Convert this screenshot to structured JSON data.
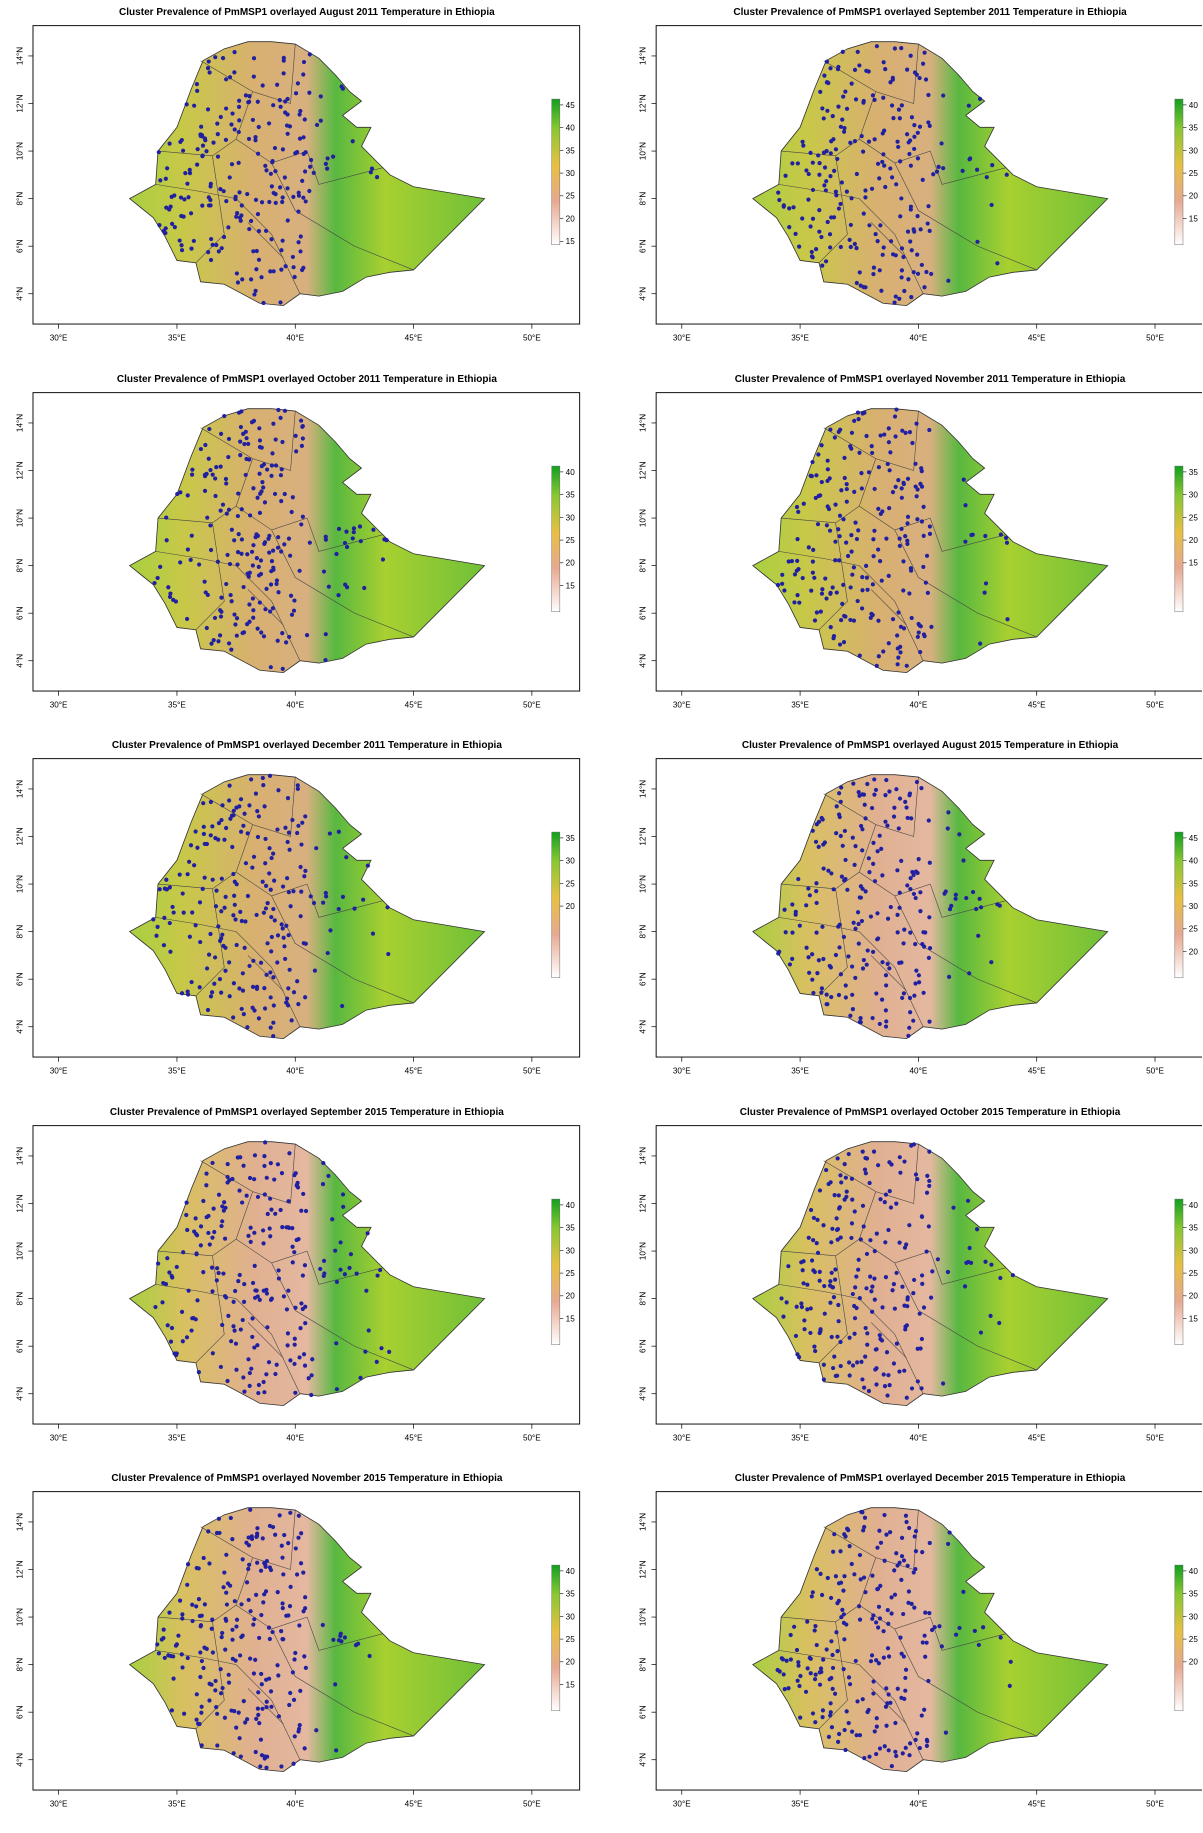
{
  "panels": [
    {
      "title": "Cluster Prevalence of PmMSP1 overlayed August 2011 Temperature in Ethiopia",
      "legend_ticks": [
        45,
        40,
        35,
        30,
        25,
        20,
        15
      ]
    },
    {
      "title": "Cluster Prevalence of PmMSP1 overlayed September 2011 Temperature in Ethiopia",
      "legend_ticks": [
        40,
        35,
        30,
        25,
        20,
        15
      ]
    },
    {
      "title": "Cluster Prevalence of PmMSP1 overlayed October 2011 Temperature in Ethiopia",
      "legend_ticks": [
        40,
        35,
        30,
        25,
        20,
        15
      ]
    },
    {
      "title": "Cluster Prevalence of PmMSP1 overlayed November 2011 Temperature in Ethiopia",
      "legend_ticks": [
        35,
        30,
        25,
        20,
        15
      ]
    },
    {
      "title": "Cluster Prevalence of PmMSP1 overlayed December 2011 Temperature in Ethiopia",
      "legend_ticks": [
        35,
        30,
        25,
        20
      ]
    },
    {
      "title": "Cluster Prevalence of PmMSP1 overlayed August 2015 Temperature in Ethiopia",
      "legend_ticks": [
        45,
        40,
        35,
        30,
        25,
        20
      ]
    },
    {
      "title": "Cluster Prevalence of PmMSP1 overlayed September 2015 Temperature in Ethiopia",
      "legend_ticks": [
        40,
        35,
        30,
        25,
        20,
        15
      ]
    },
    {
      "title": "Cluster Prevalence of PmMSP1 overlayed October 2015 Temperature in Ethiopia",
      "legend_ticks": [
        40,
        35,
        30,
        25,
        20,
        15
      ]
    },
    {
      "title": "Cluster Prevalence of PmMSP1 overlayed November 2015 Temperature in Ethiopia",
      "legend_ticks": [
        40,
        35,
        30,
        25,
        20,
        15
      ]
    },
    {
      "title": "Cluster Prevalence of PmMSP1 overlayed December 2015 Temperature in Ethiopia",
      "legend_ticks": [
        40,
        35,
        30,
        25,
        20
      ]
    }
  ],
  "lon_ticks": [
    "30°E",
    "35°E",
    "40°E",
    "45°E",
    "50°E"
  ],
  "lat_ticks": [
    "4°N",
    "6°N",
    "8°N",
    "10°N",
    "12°N",
    "14°N"
  ]
}
